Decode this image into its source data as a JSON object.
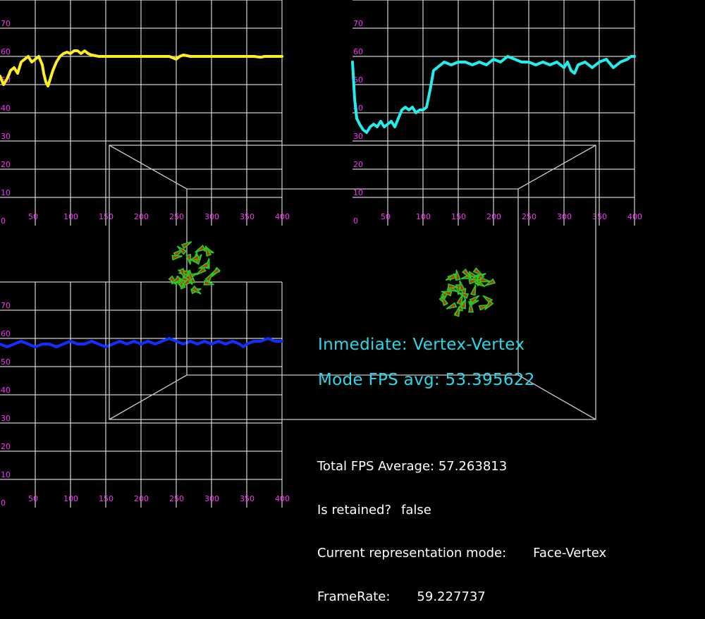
{
  "chart_data": [
    {
      "type": "line",
      "name": "fps-graph-top-left",
      "x": [
        0,
        5,
        10,
        15,
        20,
        25,
        30,
        35,
        40,
        45,
        50,
        55,
        60,
        62,
        65,
        68,
        70,
        75,
        80,
        85,
        90,
        95,
        100,
        105,
        110,
        115,
        120,
        125,
        130,
        140,
        150,
        160,
        180,
        200,
        220,
        240,
        245,
        250,
        255,
        260,
        270,
        300,
        330,
        360,
        370,
        375,
        380,
        400
      ],
      "series": [
        {
          "color": "#ffee22",
          "values": [
            53,
            50,
            52,
            55,
            56,
            54,
            58,
            59,
            60,
            58,
            59,
            60,
            57,
            54,
            51,
            49.5,
            51,
            55,
            58,
            60,
            61,
            61.5,
            61,
            62,
            62,
            61,
            62,
            61,
            60.5,
            60,
            60,
            60,
            60,
            60,
            60,
            60,
            59.5,
            59,
            60,
            60.5,
            60,
            60,
            60,
            60,
            59.7,
            60,
            60,
            60
          ]
        }
      ],
      "xticks": [
        50,
        100,
        150,
        200,
        250,
        300,
        350,
        400
      ],
      "yticks": [
        0,
        10,
        20,
        30,
        40,
        50,
        60,
        70
      ],
      "xlim": [
        0,
        400
      ],
      "ylim": [
        0,
        80
      ]
    },
    {
      "type": "line",
      "name": "fps-graph-top-right",
      "x": [
        0,
        3,
        6,
        10,
        15,
        20,
        25,
        30,
        35,
        40,
        45,
        50,
        55,
        60,
        65,
        70,
        75,
        80,
        85,
        90,
        95,
        100,
        105,
        110,
        115,
        120,
        130,
        140,
        150,
        160,
        170,
        180,
        190,
        200,
        210,
        220,
        230,
        240,
        250,
        260,
        270,
        280,
        290,
        300,
        305,
        310,
        315,
        320,
        330,
        340,
        350,
        360,
        370,
        375,
        380,
        390,
        395,
        400
      ],
      "series": [
        {
          "color": "#22eeee",
          "values": [
            58,
            45,
            38,
            36,
            34,
            33,
            35,
            36,
            35,
            37,
            35,
            36,
            37,
            35,
            38,
            41,
            42,
            41,
            42,
            40,
            41,
            41,
            42,
            48,
            55,
            56,
            58,
            57,
            58,
            58,
            57,
            58,
            57,
            59,
            58,
            60,
            59,
            58,
            58,
            57,
            58,
            57,
            58,
            56,
            58,
            55,
            54,
            57,
            58,
            56,
            58,
            59,
            56,
            57,
            58,
            59,
            60,
            60
          ]
        }
      ],
      "xticks": [
        50,
        100,
        150,
        200,
        250,
        300,
        350,
        400
      ],
      "yticks": [
        0,
        10,
        20,
        30,
        40,
        50,
        60,
        70
      ],
      "xlim": [
        0,
        400
      ],
      "ylim": [
        0,
        80
      ]
    },
    {
      "type": "line",
      "name": "fps-graph-bottom-left",
      "x": [
        0,
        10,
        20,
        30,
        40,
        50,
        60,
        70,
        80,
        90,
        100,
        110,
        120,
        130,
        140,
        150,
        160,
        170,
        180,
        190,
        200,
        210,
        220,
        230,
        240,
        250,
        260,
        270,
        280,
        290,
        300,
        310,
        320,
        330,
        340,
        345,
        350,
        360,
        370,
        380,
        390,
        400
      ],
      "series": [
        {
          "color": "#1030ff",
          "values": [
            58,
            57,
            58,
            59,
            58,
            57,
            58,
            58,
            57,
            58,
            59,
            58,
            58,
            59,
            58,
            57,
            58,
            59,
            58,
            59,
            58,
            59,
            58,
            59,
            60,
            59,
            58,
            59,
            58,
            59,
            58,
            59,
            58,
            59,
            58,
            57,
            58,
            59,
            59,
            60,
            59,
            59
          ]
        }
      ],
      "xticks": [
        50,
        100,
        150,
        200,
        250,
        300,
        350,
        400
      ],
      "yticks": [
        0,
        10,
        20,
        30,
        40,
        50,
        60,
        70
      ],
      "xlim": [
        0,
        400
      ],
      "ylim": [
        0,
        80
      ]
    }
  ],
  "overlay": {
    "mode_label": "Inmediate: Vertex-Vertex",
    "mode_fps": "Mode FPS avg: 53.395622",
    "mode_color": "#2ad8e8"
  },
  "stats": {
    "total_fps_label": "Total FPS Average:",
    "total_fps_value": "57.263813",
    "retained_label": "Is retained?",
    "retained_value": "false",
    "repr_label": "Current representation mode:",
    "repr_value": "Face-Vertex",
    "framerate_label": "FrameRate:",
    "framerate_value": "59.227737"
  },
  "scene": {
    "box_color": "#c8c8c8",
    "particle_fill": "#cc2a10",
    "particle_stroke": "#20d020",
    "particle_clusters": 2
  }
}
